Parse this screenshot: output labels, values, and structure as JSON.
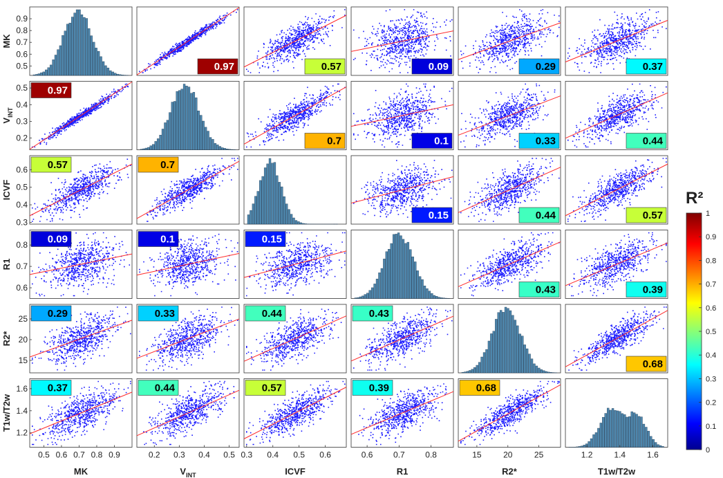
{
  "chart_data": {
    "type": "scatter_matrix",
    "variables": [
      {
        "name": "MK",
        "label_main": "MK",
        "label_sub": "",
        "range": [
          0.42,
          1.0
        ],
        "ticks": [
          0.5,
          0.6,
          0.7,
          0.8,
          0.9
        ],
        "tick_labels_x": [
          "0.5",
          "0.6",
          "0.7",
          "0.8",
          "0.9"
        ],
        "tick_labels_y": [
          "0.5",
          "0.6",
          "0.7",
          "0.8",
          "0.9"
        ]
      },
      {
        "name": "VINT",
        "label_main": "V",
        "label_sub": "INT",
        "range": [
          0.13,
          0.54
        ],
        "ticks": [
          0.2,
          0.3,
          0.4,
          0.5
        ],
        "tick_labels_x": [
          "0.2",
          "0.3",
          "0.4",
          "0.5"
        ],
        "tick_labels_y": [
          "0.2",
          "0.3",
          "0.4",
          "0.5"
        ]
      },
      {
        "name": "ICVF",
        "label_main": "ICVF",
        "label_sub": "",
        "range": [
          0.29,
          0.68
        ],
        "ticks": [
          0.3,
          0.4,
          0.5,
          0.6
        ],
        "tick_labels_x": [
          "0.3",
          "0.4",
          "0.5",
          "0.6"
        ],
        "tick_labels_y": [
          "0.3",
          "0.4",
          "0.5",
          "0.6"
        ]
      },
      {
        "name": "R1",
        "label_main": "R1",
        "label_sub": "",
        "range": [
          0.55,
          0.87
        ],
        "ticks": [
          0.6,
          0.7,
          0.8
        ],
        "tick_labels_x": [
          "0.6",
          "0.7",
          "0.8"
        ],
        "tick_labels_y": [
          "0.6",
          "0.7",
          "0.8"
        ]
      },
      {
        "name": "R2*",
        "label_main": "R2*",
        "label_sub": "",
        "range": [
          12.0,
          28.5
        ],
        "ticks": [
          15,
          20,
          25
        ],
        "tick_labels_x": [
          "15",
          "20",
          "25"
        ],
        "tick_labels_y": [
          "15",
          "20",
          "25"
        ]
      },
      {
        "name": "T1w/T2w",
        "label_main": "T1w/T2w",
        "label_sub": "",
        "range": [
          1.07,
          1.69
        ],
        "ticks": [
          1.2,
          1.4,
          1.6
        ],
        "tick_labels_x": [
          "1.2",
          "1.4",
          "1.6"
        ],
        "tick_labels_y": [
          "1.2",
          "1.4",
          "1.6"
        ]
      }
    ],
    "r2_matrix": [
      [
        null,
        0.97,
        0.57,
        0.09,
        0.29,
        0.37
      ],
      [
        0.97,
        null,
        0.7,
        0.1,
        0.33,
        0.44
      ],
      [
        0.57,
        0.7,
        null,
        0.15,
        0.44,
        0.57
      ],
      [
        0.09,
        0.1,
        0.15,
        null,
        0.43,
        0.39
      ],
      [
        0.29,
        0.33,
        0.44,
        0.43,
        null,
        0.68
      ],
      [
        0.37,
        0.44,
        0.57,
        0.39,
        0.68,
        null
      ]
    ],
    "r2_labels": [
      [
        "",
        "0.97",
        "0.57",
        "0.09",
        "0.29",
        "0.37"
      ],
      [
        "0.97",
        "",
        "0.7",
        "0.1",
        "0.33",
        "0.44"
      ],
      [
        "0.57",
        "0.7",
        "",
        "0.15",
        "0.44",
        "0.57"
      ],
      [
        "0.09",
        "0.1",
        "0.15",
        "",
        "0.43",
        "0.39"
      ],
      [
        "0.29",
        "0.33",
        "0.44",
        "0.43",
        "",
        "0.68"
      ],
      [
        "0.37",
        "0.44",
        "0.57",
        "0.39",
        "0.68",
        ""
      ]
    ],
    "colorbar": {
      "title": "R²",
      "range": [
        0,
        1
      ],
      "ticks": [
        0,
        0.1,
        0.2,
        0.3,
        0.4,
        0.5,
        0.6,
        0.7,
        0.8,
        0.9,
        1
      ],
      "tick_labels": [
        "0",
        "0.1",
        "0.2",
        "0.3",
        "0.4",
        "0.5",
        "0.6",
        "0.7",
        "0.8",
        "0.9",
        "1"
      ],
      "colormap": "jet"
    },
    "colors": {
      "scatter": "#1a1aff",
      "fit_line": "#ff2a2a",
      "hist_bar": "#4e87ad",
      "axis": "#333333"
    }
  }
}
